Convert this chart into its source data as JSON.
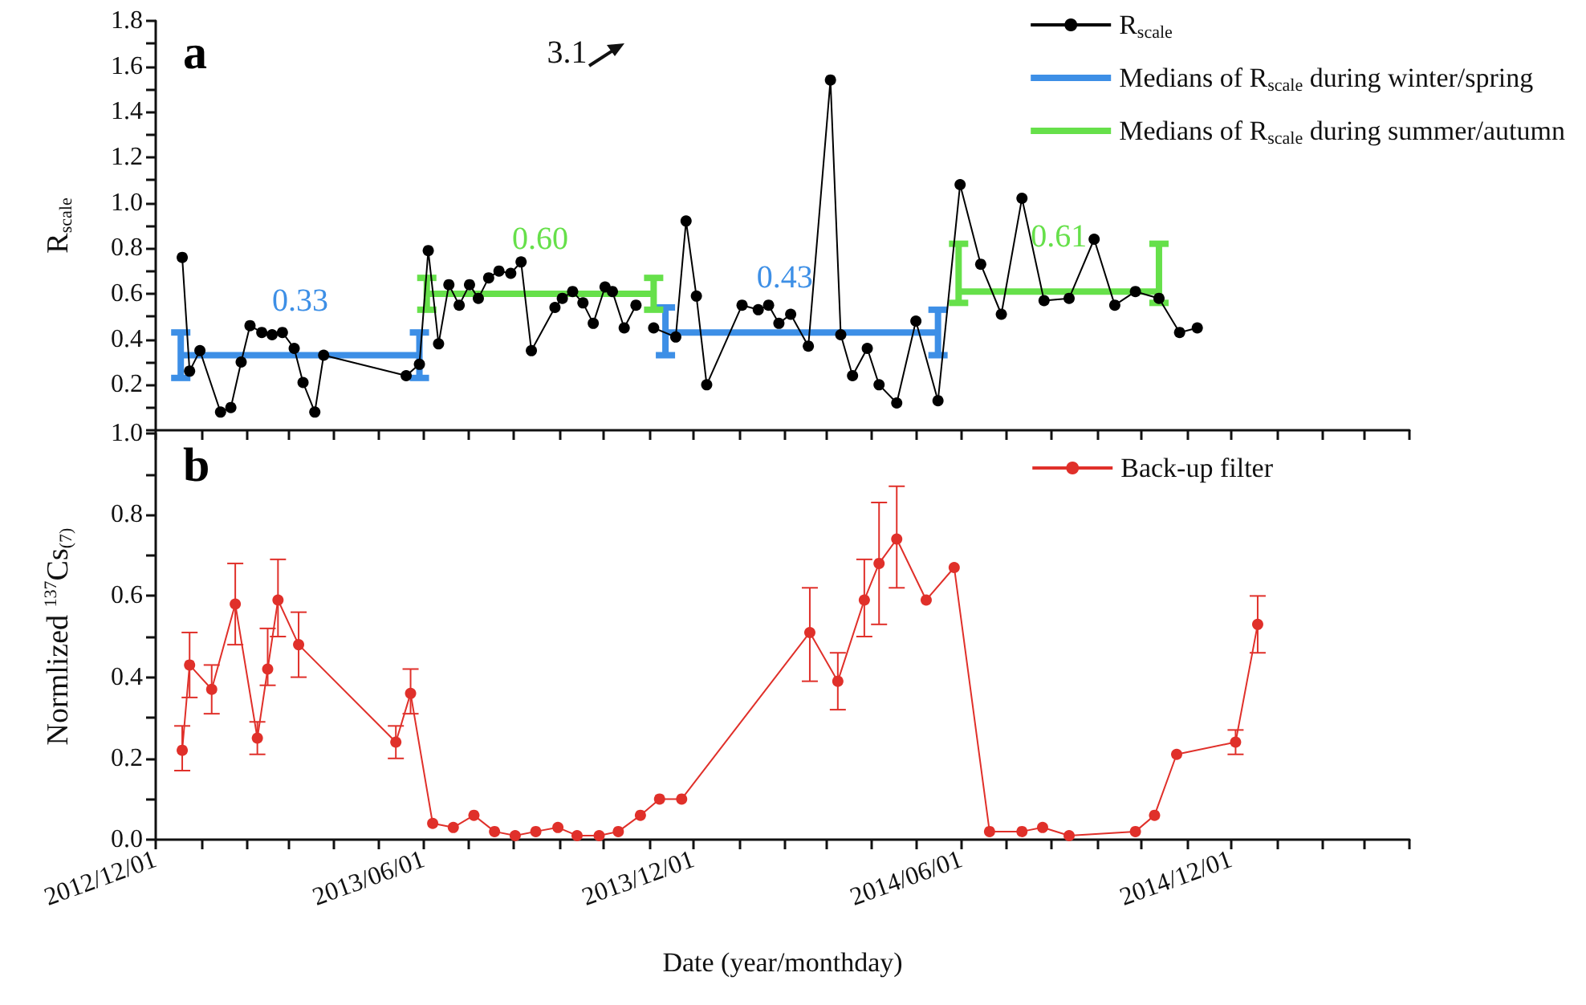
{
  "chart_data": [
    {
      "type": "line",
      "title": "a",
      "ylabel": "R$_{scale}$",
      "annotations": [
        "3.1",
        {
          "text": "0.33",
          "x": "2013-03-09",
          "y": 0.33
        },
        {
          "text": "0.60",
          "x": "2013-08-19",
          "y": 0.6
        },
        {
          "text": "0.43",
          "x": "2014-02-01",
          "y": 0.43
        },
        {
          "text": "0.61",
          "x": "2014-08-06",
          "y": 0.61
        }
      ],
      "legend": "top right",
      "marker": "circle",
      "tick_labels": "y",
      "xlim": [
        "2012-12-01",
        "2015-04-01"
      ],
      "xticks": [
        {
          "value": "2012-12-01",
          "label": null
        },
        {
          "value": "2013-01-01",
          "label": null
        },
        {
          "value": "2013-02-01",
          "label": null
        },
        {
          "value": "2013-03-01",
          "label": null
        },
        {
          "value": "2013-04-01",
          "label": null
        },
        {
          "value": "2013-05-01",
          "label": null
        },
        {
          "value": "2013-06-01",
          "label": null
        },
        {
          "value": "2013-07-01",
          "label": null
        },
        {
          "value": "2013-08-01",
          "label": null
        },
        {
          "value": "2013-09-01",
          "label": null
        },
        {
          "value": "2013-10-01",
          "label": null
        },
        {
          "value": "2013-11-01",
          "label": null
        },
        {
          "value": "2013-12-01",
          "label": null
        },
        {
          "value": "2014-01-01",
          "label": null
        },
        {
          "value": "2014-02-01",
          "label": null
        },
        {
          "value": "2014-03-01",
          "label": null
        },
        {
          "value": "2014-04-01",
          "label": null
        },
        {
          "value": "2014-05-01",
          "label": null
        },
        {
          "value": "2014-06-01",
          "label": null
        },
        {
          "value": "2014-07-01",
          "label": null
        },
        {
          "value": "2014-08-01",
          "label": null
        },
        {
          "value": "2014-09-01",
          "label": null
        },
        {
          "value": "2014-10-01",
          "label": null
        },
        {
          "value": "2014-11-01",
          "label": null
        },
        {
          "value": "2014-12-01",
          "label": null
        },
        {
          "value": "2015-01-01",
          "label": null
        },
        {
          "value": "2015-02-01",
          "label": null
        },
        {
          "value": "2015-03-01",
          "label": null
        },
        {
          "value": "2015-04-01",
          "label": null
        }
      ],
      "ylim": [
        0,
        1.8
      ],
      "yticks": [
        {
          "value": 0,
          "label": null
        },
        {
          "value": 0.1,
          "label": null
        },
        {
          "value": 0.2,
          "label": "0.2"
        },
        {
          "value": 0.3,
          "label": null
        },
        {
          "value": 0.4,
          "label": "0.4"
        },
        {
          "value": 0.5,
          "label": null
        },
        {
          "value": 0.6,
          "label": "0.6"
        },
        {
          "value": 0.7,
          "label": null
        },
        {
          "value": 0.8,
          "label": "0.8"
        },
        {
          "value": 0.9,
          "label": null
        },
        {
          "value": 1.0,
          "label": "1.0"
        },
        {
          "value": 1.1,
          "label": null
        },
        {
          "value": 1.2,
          "label": "1.2"
        },
        {
          "value": 1.3,
          "label": null
        },
        {
          "value": 1.4,
          "label": "1.4"
        },
        {
          "value": 1.5,
          "label": null
        },
        {
          "value": 1.6,
          "label": "1.6"
        },
        {
          "value": 1.7,
          "label": null
        },
        {
          "value": 1.8,
          "label": "1.8"
        }
      ],
      "series": [
        {
          "name": "R$_{scale}$",
          "color": "#000000",
          "x": [
            "2012-12-19",
            "2012-12-24",
            "2012-12-31",
            "2013-01-14",
            "2013-01-21",
            "2013-01-28",
            "2013-02-03",
            "2013-02-11",
            "2013-02-18",
            "2013-02-25",
            "2013-03-05",
            "2013-03-11",
            "2013-03-19",
            "2013-03-25",
            "2013-05-20",
            "2013-05-29",
            "2013-06-04",
            "2013-06-11",
            "2013-06-18",
            "2013-06-25",
            "2013-07-02",
            "2013-07-08",
            "2013-07-15",
            "2013-07-22",
            "2013-07-30",
            "2013-08-06",
            "2013-08-13",
            "2013-08-29",
            "2013-09-03",
            "2013-09-10",
            "2013-09-17",
            "2013-09-24",
            "2013-10-02",
            "2013-10-07",
            "2013-10-15",
            "2013-10-23",
            "2013-10-28",
            "2013-11-04",
            "2013-11-19",
            "2013-11-26",
            "2013-12-03",
            "2013-12-10",
            "2014-01-03",
            "2014-01-14",
            "2014-01-21",
            "2014-01-28",
            "2014-02-05",
            "2014-02-17",
            "2014-03-04",
            "2014-03-11",
            "2014-03-19",
            "2014-03-29",
            "2014-04-06",
            "2014-04-18",
            "2014-05-01",
            "2014-05-16",
            "2014-05-31",
            "2014-06-14",
            "2014-06-28",
            "2014-07-12",
            "2014-07-27",
            "2014-08-13",
            "2014-08-30",
            "2014-09-13",
            "2014-09-27",
            "2014-10-13",
            "2014-10-27",
            "2014-11-08"
          ],
          "values": [
            0.76,
            0.26,
            0.35,
            0.08,
            0.1,
            0.3,
            0.46,
            0.43,
            0.42,
            0.43,
            0.36,
            0.21,
            0.08,
            0.33,
            0.24,
            0.29,
            0.79,
            0.38,
            0.64,
            0.55,
            0.64,
            0.58,
            0.67,
            0.7,
            0.69,
            0.74,
            0.35,
            0.54,
            0.58,
            0.61,
            0.56,
            0.47,
            0.63,
            0.61,
            0.45,
            0.55,
            null,
            0.45,
            0.41,
            0.92,
            0.59,
            0.2,
            0.55,
            0.53,
            0.55,
            0.47,
            0.51,
            0.37,
            1.54,
            0.42,
            0.24,
            0.36,
            0.2,
            0.12,
            0.48,
            0.13,
            1.08,
            0.73,
            0.51,
            1.02,
            0.57,
            0.58,
            0.84,
            0.55,
            0.61,
            0.58,
            0.43,
            0.45
          ]
        },
        {
          "name": "Medians of R$_{scale}$ during winter/spring",
          "color": "#3d8fe6",
          "marker": "none",
          "x": [
            "2012-12-18",
            "2013-05-29",
            "2013-08-15",
            "2013-11-12",
            "2014-05-16"
          ],
          "values": [
            0.33,
            0.33,
            null,
            0.43,
            0.43
          ],
          "errors": [
            [
              0.23,
              0.43
            ],
            [
              0.23,
              0.43
            ],
            null,
            [
              0.33,
              0.54
            ],
            [
              0.33,
              0.53
            ]
          ]
        },
        {
          "name": "Medians of R$_{scale}$ during summer/autumn",
          "color": "#66e04a",
          "marker": "none",
          "x": [
            "2013-06-03",
            "2013-11-04",
            "2014-02-15",
            "2014-05-30",
            "2014-10-13"
          ],
          "values": [
            0.6,
            0.6,
            null,
            0.61,
            0.61
          ],
          "errors": [
            [
              0.53,
              0.67
            ],
            [
              0.53,
              0.67
            ],
            null,
            [
              0.56,
              0.82
            ],
            [
              0.56,
              0.82
            ]
          ]
        }
      ]
    },
    {
      "type": "line",
      "title": "b",
      "ylabel": "Normlized $^{137}$Cs$_{(7)}$",
      "xlabel": "Date (year/monthday)",
      "legend": "top right",
      "marker": "circle",
      "xlim": [
        "2012-12-01",
        "2015-04-01"
      ],
      "xticks": [
        {
          "value": "2012-12-01",
          "label": "2012/12/01"
        },
        {
          "value": "2013-01-01",
          "label": null
        },
        {
          "value": "2013-02-01",
          "label": null
        },
        {
          "value": "2013-03-01",
          "label": null
        },
        {
          "value": "2013-04-01",
          "label": null
        },
        {
          "value": "2013-05-01",
          "label": null
        },
        {
          "value": "2013-06-01",
          "label": "2013/06/01"
        },
        {
          "value": "2013-07-01",
          "label": null
        },
        {
          "value": "2013-08-01",
          "label": null
        },
        {
          "value": "2013-09-01",
          "label": null
        },
        {
          "value": "2013-10-01",
          "label": null
        },
        {
          "value": "2013-11-01",
          "label": null
        },
        {
          "value": "2013-12-01",
          "label": "2013/12/01"
        },
        {
          "value": "2014-01-01",
          "label": null
        },
        {
          "value": "2014-02-01",
          "label": null
        },
        {
          "value": "2014-03-01",
          "label": null
        },
        {
          "value": "2014-04-01",
          "label": null
        },
        {
          "value": "2014-05-01",
          "label": null
        },
        {
          "value": "2014-06-01",
          "label": "2014/06/01"
        },
        {
          "value": "2014-07-01",
          "label": null
        },
        {
          "value": "2014-08-01",
          "label": null
        },
        {
          "value": "2014-09-01",
          "label": null
        },
        {
          "value": "2014-10-01",
          "label": null
        },
        {
          "value": "2014-11-01",
          "label": null
        },
        {
          "value": "2014-12-01",
          "label": "2014/12/01"
        },
        {
          "value": "2015-01-01",
          "label": null
        },
        {
          "value": "2015-02-01",
          "label": null
        },
        {
          "value": "2015-03-01",
          "label": null
        },
        {
          "value": "2015-04-01",
          "label": null
        }
      ],
      "ylim": [
        0,
        1.0
      ],
      "yticks": [
        {
          "value": 0,
          "label": "0.0"
        },
        {
          "value": 0.1,
          "label": null
        },
        {
          "value": 0.2,
          "label": "0.2"
        },
        {
          "value": 0.3,
          "label": null
        },
        {
          "value": 0.4,
          "label": "0.4"
        },
        {
          "value": 0.5,
          "label": null
        },
        {
          "value": 0.6,
          "label": "0.6"
        },
        {
          "value": 0.7,
          "label": null
        },
        {
          "value": 0.8,
          "label": "0.8"
        },
        {
          "value": 0.9,
          "label": null
        },
        {
          "value": 1.0,
          "label": "1.0"
        }
      ],
      "series": [
        {
          "name": "Back-up filter",
          "color": "#e0302a",
          "x": [
            "2012-12-19",
            "2012-12-24",
            "2013-01-08",
            "2013-01-24",
            "2013-02-08",
            "2013-02-15",
            "2013-02-22",
            "2013-03-08",
            "2013-05-13",
            "2013-05-23",
            "2013-06-07",
            "2013-06-21",
            "2013-07-05",
            "2013-07-19",
            "2013-08-02",
            "2013-08-16",
            "2013-08-31",
            "2013-09-13",
            "2013-09-28",
            "2013-10-11",
            "2013-10-26",
            "2013-11-08",
            "2013-11-23",
            "2014-02-18",
            "2014-03-09",
            "2014-03-27",
            "2014-04-06",
            "2014-04-18",
            "2014-05-08",
            "2014-05-27",
            "2014-06-20",
            "2014-07-12",
            "2014-07-26",
            "2014-08-13",
            "2014-09-27",
            "2014-10-10",
            "2014-10-25",
            "2014-12-04",
            "2014-12-19"
          ],
          "values": [
            0.22,
            0.43,
            0.37,
            0.58,
            0.25,
            0.42,
            0.59,
            0.48,
            0.24,
            0.36,
            0.04,
            0.03,
            0.06,
            0.02,
            0.01,
            0.02,
            0.03,
            0.01,
            0.01,
            0.02,
            0.06,
            0.1,
            0.1,
            0.51,
            0.39,
            0.59,
            0.68,
            0.74,
            0.59,
            0.67,
            0.02,
            0.02,
            0.03,
            0.01,
            0.02,
            0.06,
            0.21,
            0.24,
            0.53
          ],
          "errors": [
            [
              0.17,
              0.28
            ],
            [
              0.35,
              0.51
            ],
            [
              0.31,
              0.43
            ],
            [
              0.48,
              0.68
            ],
            [
              0.21,
              0.29
            ],
            [
              0.38,
              0.52
            ],
            [
              0.5,
              0.69
            ],
            [
              0.4,
              0.56
            ],
            [
              0.2,
              0.28
            ],
            [
              0.31,
              0.42
            ],
            null,
            null,
            null,
            null,
            null,
            null,
            null,
            null,
            null,
            null,
            null,
            null,
            null,
            [
              0.39,
              0.62
            ],
            [
              0.32,
              0.46
            ],
            [
              0.5,
              0.69
            ],
            [
              0.53,
              0.83
            ],
            [
              0.62,
              0.87
            ],
            null,
            null,
            null,
            null,
            null,
            null,
            null,
            null,
            null,
            [
              0.21,
              0.27
            ],
            [
              0.46,
              0.6
            ]
          ]
        }
      ]
    }
  ]
}
